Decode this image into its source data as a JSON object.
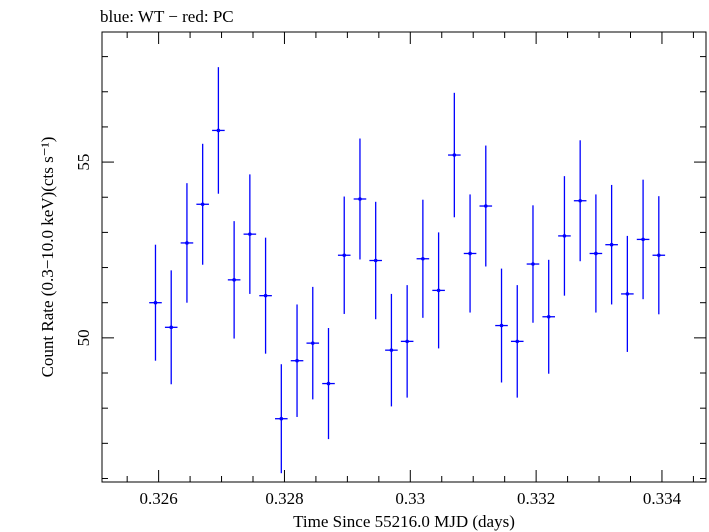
{
  "chart_data": {
    "type": "scatter",
    "title": "blue: WT − red: PC",
    "xlabel": "Time Since 55216.0 MJD (days)",
    "ylabel": "Count Rate (0.3−10.0 keV)(cts s⁻¹)",
    "xlim": [
      0.3251,
      0.3347
    ],
    "ylim": [
      45.9,
      58.7
    ],
    "xticks": [
      {
        "value": 0.326,
        "label": "0.326"
      },
      {
        "value": 0.328,
        "label": "0.328"
      },
      {
        "value": 0.33,
        "label": "0.33"
      },
      {
        "value": 0.332,
        "label": "0.332"
      },
      {
        "value": 0.334,
        "label": "0.334"
      }
    ],
    "yticks": [
      {
        "value": 50,
        "label": "50"
      },
      {
        "value": 55,
        "label": "55"
      }
    ],
    "x_half_width": 0.0001,
    "series": [
      {
        "color": "#0000ff",
        "points": [
          {
            "x": 0.32595,
            "y": 51.0,
            "yerr": 1.65
          },
          {
            "x": 0.3262,
            "y": 50.3,
            "yerr": 1.62
          },
          {
            "x": 0.32645,
            "y": 52.7,
            "yerr": 1.7
          },
          {
            "x": 0.3267,
            "y": 53.8,
            "yerr": 1.72
          },
          {
            "x": 0.32695,
            "y": 55.9,
            "yerr": 1.8
          },
          {
            "x": 0.3272,
            "y": 51.65,
            "yerr": 1.67
          },
          {
            "x": 0.32745,
            "y": 52.95,
            "yerr": 1.7
          },
          {
            "x": 0.3277,
            "y": 51.2,
            "yerr": 1.65
          },
          {
            "x": 0.32795,
            "y": 47.7,
            "yerr": 1.55
          },
          {
            "x": 0.3282,
            "y": 49.35,
            "yerr": 1.6
          },
          {
            "x": 0.32845,
            "y": 49.85,
            "yerr": 1.6
          },
          {
            "x": 0.3287,
            "y": 48.7,
            "yerr": 1.58
          },
          {
            "x": 0.32895,
            "y": 52.35,
            "yerr": 1.67
          },
          {
            "x": 0.3292,
            "y": 53.95,
            "yerr": 1.72
          },
          {
            "x": 0.32945,
            "y": 52.2,
            "yerr": 1.67
          },
          {
            "x": 0.3297,
            "y": 49.65,
            "yerr": 1.6
          },
          {
            "x": 0.32995,
            "y": 49.9,
            "yerr": 1.6
          },
          {
            "x": 0.3302,
            "y": 52.25,
            "yerr": 1.68
          },
          {
            "x": 0.33045,
            "y": 51.35,
            "yerr": 1.65
          },
          {
            "x": 0.3307,
            "y": 55.2,
            "yerr": 1.77
          },
          {
            "x": 0.33095,
            "y": 52.4,
            "yerr": 1.68
          },
          {
            "x": 0.3312,
            "y": 53.75,
            "yerr": 1.72
          },
          {
            "x": 0.33145,
            "y": 50.35,
            "yerr": 1.62
          },
          {
            "x": 0.3317,
            "y": 49.9,
            "yerr": 1.6
          },
          {
            "x": 0.33195,
            "y": 52.1,
            "yerr": 1.67
          },
          {
            "x": 0.3322,
            "y": 50.6,
            "yerr": 1.62
          },
          {
            "x": 0.33245,
            "y": 52.9,
            "yerr": 1.7
          },
          {
            "x": 0.3327,
            "y": 53.9,
            "yerr": 1.72
          },
          {
            "x": 0.33295,
            "y": 52.4,
            "yerr": 1.68
          },
          {
            "x": 0.3332,
            "y": 52.65,
            "yerr": 1.7
          },
          {
            "x": 0.33345,
            "y": 51.25,
            "yerr": 1.65
          },
          {
            "x": 0.3337,
            "y": 52.8,
            "yerr": 1.7
          },
          {
            "x": 0.33395,
            "y": 52.35,
            "yerr": 1.68
          }
        ]
      }
    ]
  }
}
